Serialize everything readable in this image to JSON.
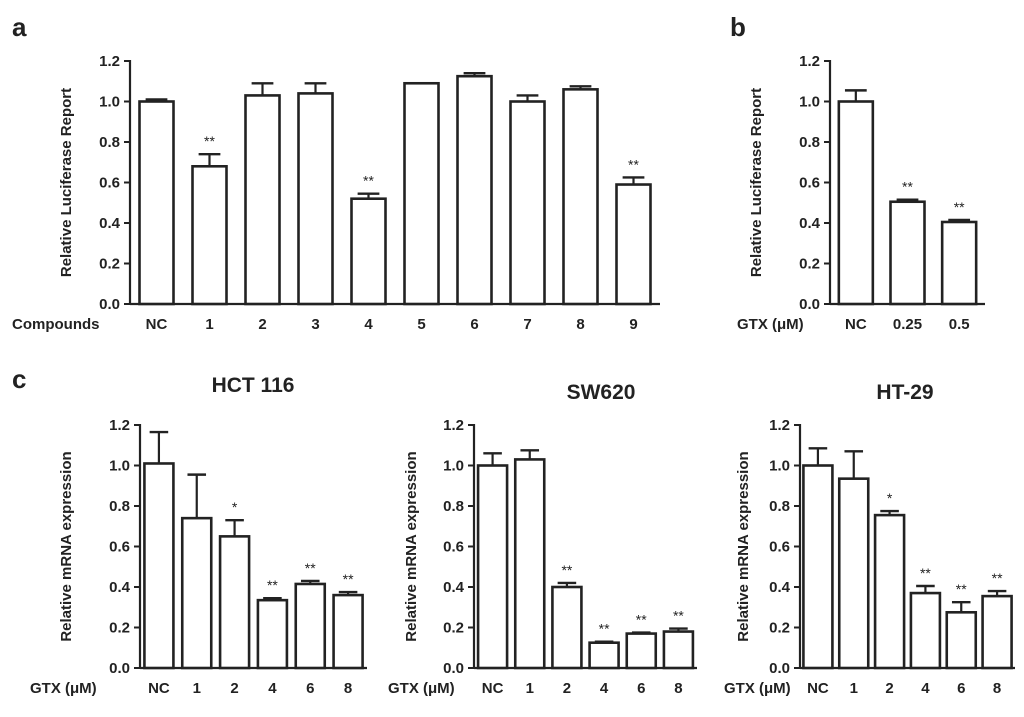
{
  "panels": [
    {
      "label": "a"
    },
    {
      "label": "b"
    },
    {
      "label": "c"
    }
  ],
  "chart_data": [
    {
      "id": "a",
      "type": "bar",
      "title": "",
      "xlabel": "Compounds",
      "ylabel": "Relative Luciferase Report",
      "ylim": [
        0,
        1.2
      ],
      "yticks": [
        "0.0",
        "0.2",
        "0.4",
        "0.6",
        "0.8",
        "1.0",
        "1.2"
      ],
      "categories": [
        "NC",
        "1",
        "2",
        "3",
        "4",
        "5",
        "6",
        "7",
        "8",
        "9"
      ],
      "values": [
        1.0,
        0.68,
        1.03,
        1.04,
        0.52,
        1.09,
        1.125,
        1.0,
        1.06,
        0.59
      ],
      "errors": [
        0.01,
        0.06,
        0.06,
        0.05,
        0.025,
        0.0,
        0.015,
        0.03,
        0.015,
        0.035
      ],
      "significance": [
        "",
        "**",
        "",
        "",
        "**",
        "",
        "",
        "",
        "",
        "**"
      ]
    },
    {
      "id": "b",
      "type": "bar",
      "title": "",
      "xlabel": "GTX (μM)",
      "ylabel": "Relative Luciferase Report",
      "ylim": [
        0,
        1.2
      ],
      "yticks": [
        "0.0",
        "0.2",
        "0.4",
        "0.6",
        "0.8",
        "1.0",
        "1.2"
      ],
      "categories": [
        "NC",
        "0.25",
        "0.5"
      ],
      "values": [
        1.0,
        0.505,
        0.405
      ],
      "errors": [
        0.055,
        0.01,
        0.01
      ],
      "significance": [
        "",
        "**",
        "**"
      ]
    },
    {
      "id": "c1",
      "type": "bar",
      "title": "HCT 116",
      "xlabel": "GTX (μM)",
      "ylabel": "Relative  mRNA expression",
      "ylim": [
        0,
        1.2
      ],
      "yticks": [
        "0.0",
        "0.2",
        "0.4",
        "0.6",
        "0.8",
        "1.0",
        "1.2"
      ],
      "categories": [
        "NC",
        "1",
        "2",
        "4",
        "6",
        "8"
      ],
      "values": [
        1.01,
        0.74,
        0.65,
        0.335,
        0.415,
        0.36
      ],
      "errors": [
        0.155,
        0.215,
        0.08,
        0.01,
        0.015,
        0.015
      ],
      "significance": [
        "",
        "",
        "*",
        "**",
        "**",
        "**"
      ]
    },
    {
      "id": "c2",
      "type": "bar",
      "title": "SW620",
      "xlabel": "GTX (μM)",
      "ylabel": "Relative  mRNA expression",
      "ylim": [
        0,
        1.2
      ],
      "yticks": [
        "0.0",
        "0.2",
        "0.4",
        "0.6",
        "0.8",
        "1.0",
        "1.2"
      ],
      "categories": [
        "NC",
        "1",
        "2",
        "4",
        "6",
        "8"
      ],
      "values": [
        1.0,
        1.03,
        0.4,
        0.125,
        0.17,
        0.18
      ],
      "errors": [
        0.06,
        0.045,
        0.02,
        0.005,
        0.005,
        0.015
      ],
      "significance": [
        "",
        "",
        "**",
        "**",
        "**",
        "**"
      ]
    },
    {
      "id": "c3",
      "type": "bar",
      "title": "HT-29",
      "xlabel": "GTX (μM)",
      "ylabel": "Relative  mRNA expression",
      "ylim": [
        0,
        1.2
      ],
      "yticks": [
        "0.0",
        "0.2",
        "0.4",
        "0.6",
        "0.8",
        "1.0",
        "1.2"
      ],
      "categories": [
        "NC",
        "1",
        "2",
        "4",
        "6",
        "8"
      ],
      "values": [
        1.0,
        0.935,
        0.755,
        0.37,
        0.275,
        0.355
      ],
      "errors": [
        0.085,
        0.135,
        0.02,
        0.035,
        0.05,
        0.025
      ],
      "significance": [
        "",
        "",
        "*",
        "**",
        "**",
        "**"
      ]
    }
  ]
}
